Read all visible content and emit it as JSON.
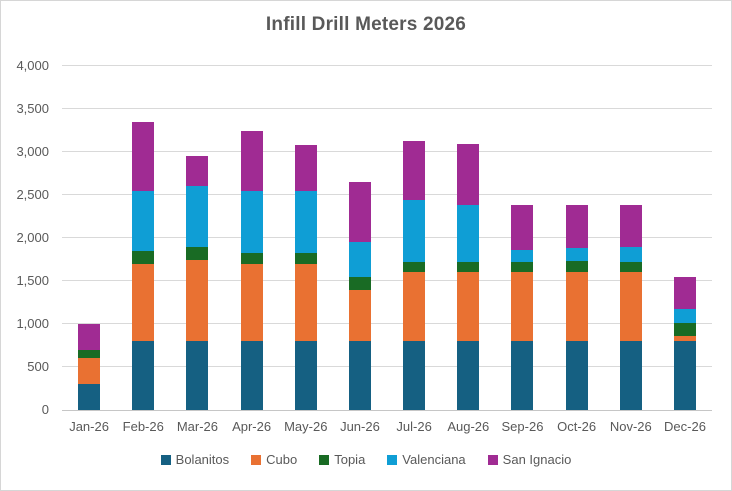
{
  "chart_data": {
    "type": "bar",
    "stacked": true,
    "title": "Infill Drill Meters 2026",
    "categories": [
      "Jan-26",
      "Feb-26",
      "Mar-26",
      "Apr-26",
      "May-26",
      "Jun-26",
      "Jul-26",
      "Aug-26",
      "Sep-26",
      "Oct-26",
      "Nov-26",
      "Dec-26"
    ],
    "series": [
      {
        "name": "Bolanitos",
        "color": "#156082",
        "values": [
          300,
          800,
          800,
          800,
          800,
          800,
          800,
          800,
          800,
          800,
          800,
          800
        ]
      },
      {
        "name": "Cubo",
        "color": "#E97132",
        "values": [
          300,
          900,
          950,
          900,
          900,
          600,
          800,
          800,
          800,
          800,
          800,
          60
        ]
      },
      {
        "name": "Topia",
        "color": "#196B24",
        "values": [
          100,
          150,
          150,
          130,
          130,
          150,
          120,
          120,
          120,
          130,
          120,
          150
        ]
      },
      {
        "name": "Valenciana",
        "color": "#0F9ED5",
        "values": [
          0,
          700,
          700,
          720,
          720,
          400,
          720,
          660,
          140,
          150,
          180,
          170
        ]
      },
      {
        "name": "San Ignacio",
        "color": "#A02B93",
        "values": [
          300,
          800,
          350,
          700,
          530,
          700,
          690,
          710,
          520,
          500,
          490,
          370
        ]
      }
    ],
    "totals": [
      1000,
      3350,
      2950,
      3250,
      3080,
      2650,
      3130,
      3090,
      2380,
      2380,
      2390,
      1550
    ],
    "ylim": [
      0,
      4000
    ],
    "ytick_step": 500,
    "ytick_labels": [
      "0",
      "500",
      "1,000",
      "1,500",
      "2,000",
      "2,500",
      "3,000",
      "3,500",
      "4,000"
    ],
    "grid": true,
    "legend_position": "bottom",
    "colors": {
      "gridline": "#D9D9D9",
      "axis_line": "#C6C6C6",
      "title_text": "#595959",
      "axis_text": "#595959",
      "legend_text": "#595959",
      "background": "#FFFFFF",
      "border": "#D6D6D6"
    }
  }
}
